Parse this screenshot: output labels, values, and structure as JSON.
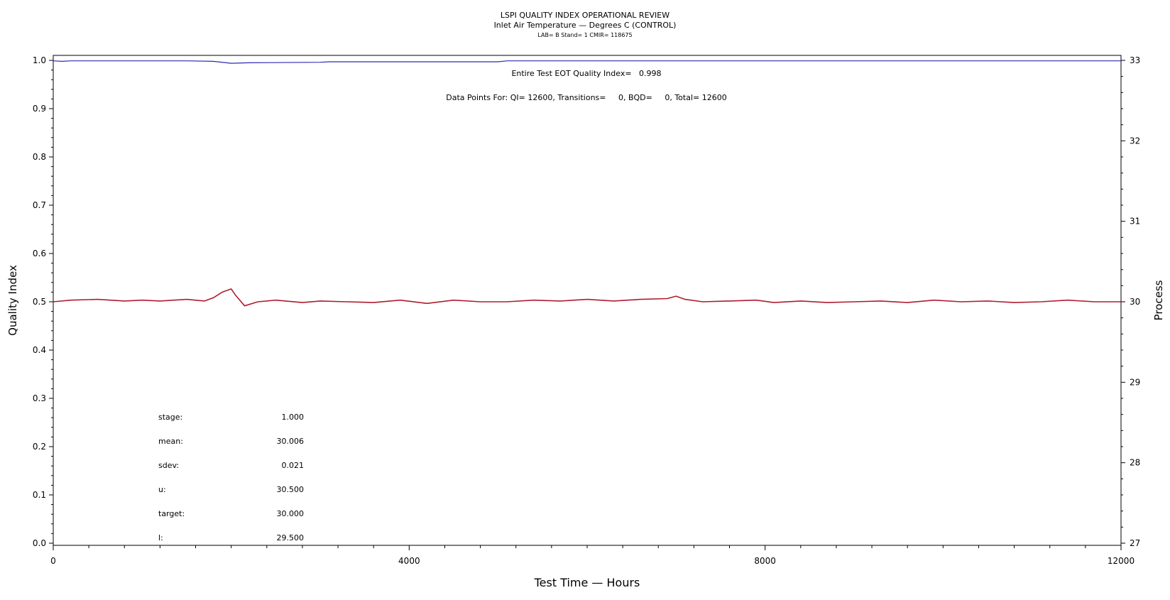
{
  "chart_data": {
    "type": "line",
    "title": "LSPI QUALITY INDEX OPERATIONAL REVIEW",
    "subtitle": "Inlet Air Temperature — Degrees C (CONTROL)",
    "subtitle2": "LAB= B Stand= 1 CMIR= 118675",
    "xlabel": "Test Time — Hours",
    "ylabel": "Quality Index",
    "y2label": "Process",
    "xlim": [
      0,
      12000
    ],
    "ylim": [
      0,
      1
    ],
    "y2lim": [
      27,
      33
    ],
    "x_ticks": [
      "0",
      "4000",
      "8000",
      "12000"
    ],
    "y_ticks": [
      "0.0",
      "0.1",
      "0.2",
      "0.3",
      "0.4",
      "0.5",
      "0.6",
      "0.7",
      "0.8",
      "0.9",
      "1.0"
    ],
    "y2_ticks": [
      "27",
      "28",
      "29",
      "30",
      "31",
      "32",
      "33"
    ],
    "quality_index_line": "Entire Test EOT Quality Index=   0.998",
    "data_points_line": "Data Points For: QI= 12600, Transitions=     0, BQD=     0, Total= 12600",
    "series": [
      {
        "axis": "left",
        "color": "#2b2bb3",
        "x": [
          0,
          100,
          200,
          1500,
          1800,
          2000,
          2200,
          3000,
          3100,
          5000,
          5100,
          12000
        ],
        "y": [
          0.999,
          0.998,
          0.999,
          0.999,
          0.998,
          0.994,
          0.995,
          0.996,
          0.997,
          0.997,
          0.999,
          0.999
        ]
      },
      {
        "axis": "right",
        "color": "#b01c2e",
        "x": [
          0,
          200,
          500,
          800,
          1000,
          1200,
          1500,
          1700,
          1800,
          1900,
          2000,
          2050,
          2150,
          2300,
          2500,
          2800,
          3000,
          3300,
          3600,
          3900,
          4200,
          4500,
          4800,
          5100,
          5400,
          5700,
          6000,
          6300,
          6600,
          6900,
          7000,
          7100,
          7300,
          7600,
          7900,
          8100,
          8400,
          8700,
          9000,
          9300,
          9600,
          9900,
          10200,
          10500,
          10800,
          11100,
          11400,
          11700,
          12000
        ],
        "y": [
          30.0,
          30.02,
          30.03,
          30.01,
          30.02,
          30.01,
          30.03,
          30.01,
          30.05,
          30.12,
          30.16,
          30.08,
          29.95,
          30.0,
          30.02,
          29.99,
          30.01,
          30.0,
          29.99,
          30.02,
          29.98,
          30.02,
          30.0,
          30.0,
          30.02,
          30.01,
          30.03,
          30.01,
          30.03,
          30.04,
          30.07,
          30.03,
          30.0,
          30.01,
          30.02,
          29.99,
          30.01,
          29.99,
          30.0,
          30.01,
          29.99,
          30.02,
          30.0,
          30.01,
          29.99,
          30.0,
          30.02,
          30.0,
          30.0
        ]
      }
    ],
    "stats": [
      {
        "label": "stage:",
        "value": "1.000"
      },
      {
        "label": "mean:",
        "value": "30.006"
      },
      {
        "label": "sdev:",
        "value": "0.021"
      },
      {
        "label": "u:",
        "value": "30.500"
      },
      {
        "label": "target:",
        "value": "30.000"
      },
      {
        "label": "l:",
        "value": "29.500"
      }
    ]
  }
}
